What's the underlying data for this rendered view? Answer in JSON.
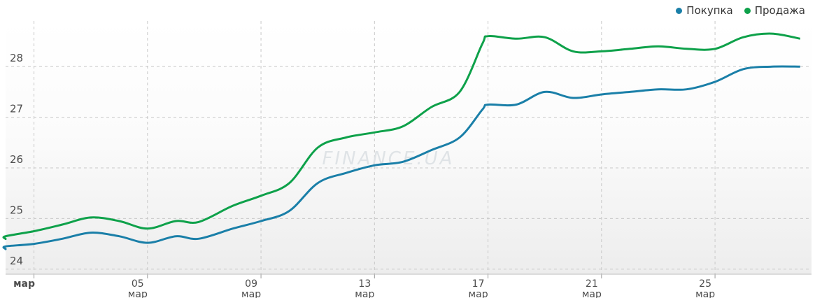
{
  "chart_data": {
    "type": "line",
    "ylim": [
      23.9,
      28.9
    ],
    "y_ticks": [
      24,
      25,
      26,
      27,
      28
    ],
    "x_range": [
      0,
      28.4
    ],
    "x_ticks": [
      {
        "x": 1,
        "label": "мар",
        "sub": "",
        "major": true
      },
      {
        "x": 5,
        "label": "05",
        "sub": "мар",
        "major": false
      },
      {
        "x": 9,
        "label": "09",
        "sub": "мар",
        "major": false
      },
      {
        "x": 13,
        "label": "13",
        "sub": "мар",
        "major": false
      },
      {
        "x": 17,
        "label": "17",
        "sub": "мар",
        "major": false
      },
      {
        "x": 21,
        "label": "21",
        "sub": "мар",
        "major": false
      },
      {
        "x": 25,
        "label": "25",
        "sub": "мар",
        "major": false
      }
    ],
    "grid": true,
    "legend_position": "top-right",
    "watermark": "FINANCE.UA",
    "series": [
      {
        "name": "Покупка",
        "color": "#1a7fa8",
        "points": [
          [
            -2,
            24.4
          ],
          [
            -1,
            24.4
          ],
          [
            0,
            24.45
          ],
          [
            1,
            24.5
          ],
          [
            2,
            24.6
          ],
          [
            3,
            24.72
          ],
          [
            4,
            24.65
          ],
          [
            5,
            24.52
          ],
          [
            6,
            24.65
          ],
          [
            6.8,
            24.6
          ],
          [
            8,
            24.8
          ],
          [
            9,
            24.95
          ],
          [
            10,
            25.15
          ],
          [
            11,
            25.7
          ],
          [
            12,
            25.9
          ],
          [
            13,
            26.05
          ],
          [
            14,
            26.12
          ],
          [
            15,
            26.35
          ],
          [
            16,
            26.6
          ],
          [
            16.8,
            27.15
          ],
          [
            17,
            27.25
          ],
          [
            18,
            27.25
          ],
          [
            19,
            27.5
          ],
          [
            20,
            27.38
          ],
          [
            21,
            27.45
          ],
          [
            22,
            27.5
          ],
          [
            23,
            27.55
          ],
          [
            24,
            27.55
          ],
          [
            25,
            27.7
          ],
          [
            26,
            27.95
          ],
          [
            27,
            28.0
          ],
          [
            28,
            28.0
          ]
        ]
      },
      {
        "name": "Продажа",
        "color": "#0ea14a",
        "points": [
          [
            -2,
            24.6
          ],
          [
            -1,
            24.6
          ],
          [
            0,
            24.65
          ],
          [
            1,
            24.75
          ],
          [
            2,
            24.88
          ],
          [
            3,
            25.02
          ],
          [
            4,
            24.95
          ],
          [
            5,
            24.8
          ],
          [
            6,
            24.95
          ],
          [
            6.8,
            24.93
          ],
          [
            8,
            25.25
          ],
          [
            9,
            25.45
          ],
          [
            10,
            25.7
          ],
          [
            11,
            26.4
          ],
          [
            12,
            26.6
          ],
          [
            13,
            26.7
          ],
          [
            14,
            26.82
          ],
          [
            15,
            27.2
          ],
          [
            16,
            27.5
          ],
          [
            16.8,
            28.45
          ],
          [
            17,
            28.6
          ],
          [
            18,
            28.55
          ],
          [
            19,
            28.58
          ],
          [
            20,
            28.3
          ],
          [
            21,
            28.3
          ],
          [
            22,
            28.35
          ],
          [
            23,
            28.4
          ],
          [
            24,
            28.35
          ],
          [
            25,
            28.35
          ],
          [
            26,
            28.58
          ],
          [
            27,
            28.65
          ],
          [
            28,
            28.55
          ]
        ]
      }
    ]
  }
}
